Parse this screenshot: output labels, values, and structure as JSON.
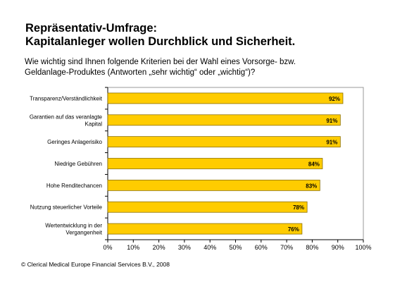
{
  "header": {
    "title_line1": "Repräsentativ-Umfrage:",
    "title_line2": "Kapitalanleger wollen Durchblick und Sicherheit.",
    "question_line1": "Wie wichtig sind Ihnen folgende Kriterien bei der Wahl eines Vorsorge- bzw.",
    "question_line2": "Geldanlage-Produktes (Antworten „sehr wichtig“ oder „wichtig“)?"
  },
  "footer": {
    "copyright": "© Clerical Medical Europe Financial Services B.V., 2008"
  },
  "colors": {
    "bar": "#FFCC00",
    "bar_border": "#8C7000",
    "background": "#FFFFFF",
    "grid_line": "#999999"
  },
  "chart_data": {
    "type": "bar",
    "orientation": "horizontal",
    "categories": [
      [
        "Transparenz/Verständlichkeit"
      ],
      [
        "Garantien auf das veranlagte",
        "Kapital"
      ],
      [
        "Geringes Anlagerisiko"
      ],
      [
        "Niedrige Gebühren"
      ],
      [
        "Hohe Renditechancen"
      ],
      [
        "Nutzung steuerlicher Vorteile"
      ],
      [
        "Wertentwicklung in der",
        "Vergangenheit"
      ]
    ],
    "values": [
      92,
      91,
      91,
      84,
      83,
      78,
      76
    ],
    "value_labels": [
      "92%",
      "91%",
      "91%",
      "84%",
      "83%",
      "78%",
      "76%"
    ],
    "xlim": [
      0,
      100
    ],
    "x_ticks": [
      "0%",
      "10%",
      "20%",
      "30%",
      "40%",
      "50%",
      "60%",
      "70%",
      "80%",
      "90%",
      "100%"
    ],
    "grid": false
  }
}
